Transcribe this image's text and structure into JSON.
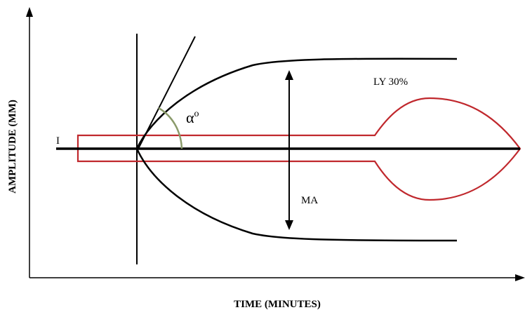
{
  "axes": {
    "x_title": "TIME (MINUTES)",
    "y_title": "AMPLITUDE  (MM)"
  },
  "labels": {
    "i_marker": "I",
    "ly30": "LY 30%",
    "ma": "MA",
    "alpha": "α",
    "alpha_sup": "o"
  },
  "colors": {
    "black": "#000000",
    "red": "#c0282d",
    "angle_arc": "#8a9a6a"
  }
}
